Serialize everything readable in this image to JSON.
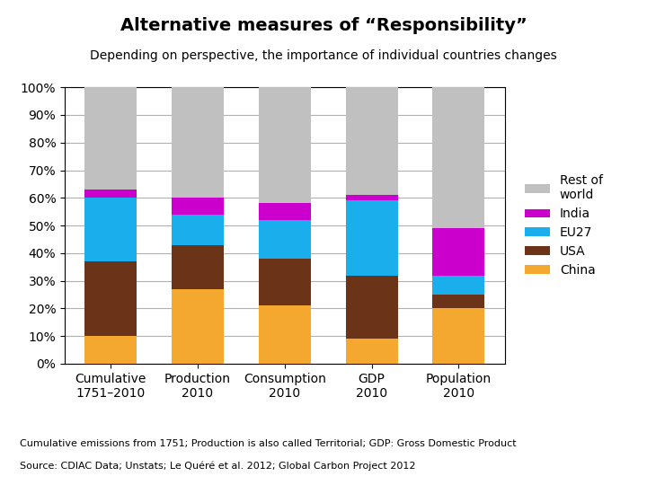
{
  "chart_data": {
    "type": "bar",
    "stacked": true,
    "title": "Alternative measures of “Responsibility”",
    "subtitle": "Depending on perspective, the importance of individual countries changes",
    "categories": [
      "Cumulative\n1751–2010",
      "Production\n2010",
      "Consumption\n2010",
      "GDP\n2010",
      "Population\n2010"
    ],
    "series": [
      {
        "name": "China",
        "color": "#F5A830",
        "values": [
          10,
          27,
          21,
          9,
          20
        ]
      },
      {
        "name": "USA",
        "color": "#6B3318",
        "values": [
          27,
          16,
          17,
          23,
          5
        ]
      },
      {
        "name": "EU27",
        "color": "#1AAFEC",
        "values": [
          23,
          11,
          14,
          27,
          7
        ]
      },
      {
        "name": "India",
        "color": "#CC00CC",
        "values": [
          3,
          6,
          6,
          2,
          17
        ]
      },
      {
        "name": "Rest of\nworld",
        "color": "#C0C0C0",
        "values": [
          37,
          40,
          42,
          39,
          51
        ]
      }
    ],
    "ylim": [
      0,
      100
    ],
    "yticks": [
      {
        "value": 0,
        "label": "0%"
      },
      {
        "value": 10,
        "label": "10%"
      },
      {
        "value": 20,
        "label": "20%"
      },
      {
        "value": 30,
        "label": "30%"
      },
      {
        "value": 40,
        "label": "40%"
      },
      {
        "value": 50,
        "label": "50%"
      },
      {
        "value": 60,
        "label": "60%"
      },
      {
        "value": 70,
        "label": "70%"
      },
      {
        "value": 80,
        "label": "80%"
      },
      {
        "value": 90,
        "label": "90%"
      },
      {
        "value": 100,
        "label": "100%"
      }
    ],
    "grid": true,
    "legend": "center left",
    "annotations": [
      "Cumulative emissions from 1751; Production is also called Territorial; GDP: Gross Domestic Product",
      "Source: CDIAC Data; Unstats; Le Quéré et al. 2012; Global Carbon Project 2012"
    ]
  }
}
